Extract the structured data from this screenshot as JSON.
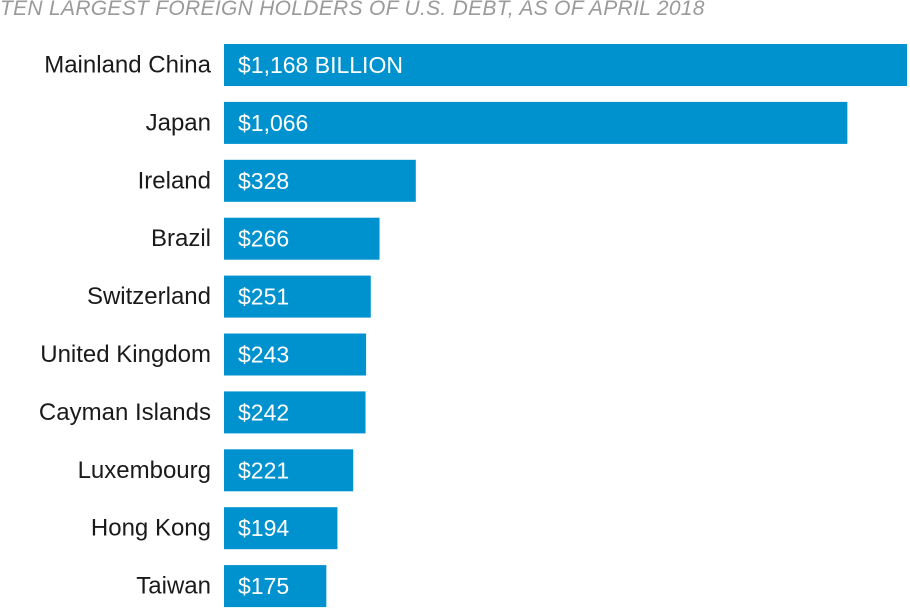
{
  "chart_data": {
    "type": "bar",
    "orientation": "horizontal",
    "title": "TEN LARGEST FOREIGN HOLDERS OF U.S. DEBT, AS OF APRIL 2018",
    "categories": [
      "Mainland China",
      "Japan",
      "Ireland",
      "Brazil",
      "Switzerland",
      "United Kingdom",
      "Cayman Islands",
      "Luxembourg",
      "Hong Kong",
      "Taiwan"
    ],
    "values": [
      1168,
      1066,
      328,
      266,
      251,
      243,
      242,
      221,
      194,
      175
    ],
    "value_labels": [
      "$1,168 BILLION",
      "$1,066",
      "$328",
      "$266",
      "$251",
      "$243",
      "$242",
      "$221",
      "$194",
      "$175"
    ],
    "xlabel": "",
    "ylabel": "",
    "grid": false,
    "bar_color": "#0092cf"
  }
}
